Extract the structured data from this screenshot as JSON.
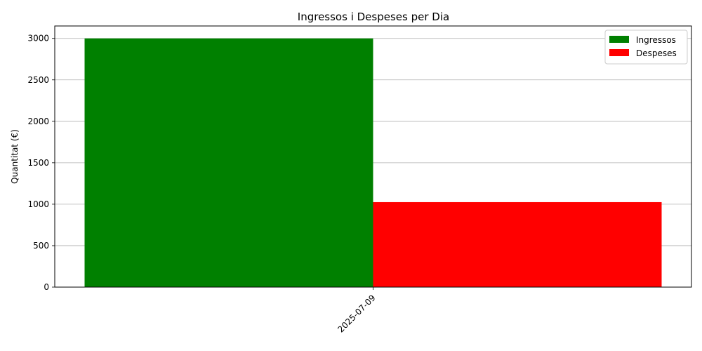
{
  "chart_data": {
    "type": "bar",
    "title": "Ingressos i Despeses per Dia",
    "xlabel": "",
    "ylabel": "Quantitat (€)",
    "categories": [
      "2025-07-09"
    ],
    "series": [
      {
        "name": "Ingressos",
        "values": [
          3000
        ],
        "color": "#008000"
      },
      {
        "name": "Despeses",
        "values": [
          1025
        ],
        "color": "#ff0000"
      }
    ],
    "ylim": [
      0,
      3150
    ],
    "yticks": [
      0,
      500,
      1000,
      1500,
      2000,
      2500,
      3000
    ],
    "grid": "horizontal",
    "legend_position": "top-right"
  }
}
